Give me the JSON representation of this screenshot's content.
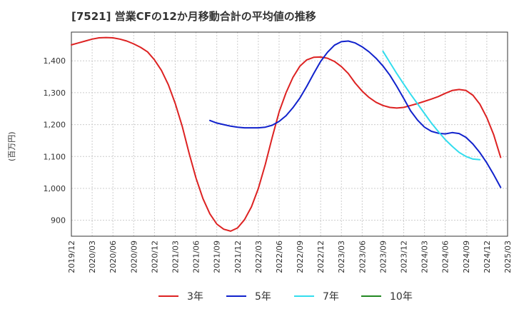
{
  "chart_data": {
    "type": "line",
    "title": "[7521]  営業CFの12か月移動合計の平均値の推移",
    "ylabel": "(百万円)",
    "xlabel": "",
    "ylim": [
      850,
      1490
    ],
    "yticks": [
      900,
      1000,
      1100,
      1200,
      1300,
      1400
    ],
    "ytick_labels": [
      "900",
      "1,000",
      "1,100",
      "1,200",
      "1,300",
      "1,400"
    ],
    "xticks": [
      "2019/12",
      "2020/03",
      "2020/06",
      "2020/09",
      "2020/12",
      "2021/03",
      "2021/06",
      "2021/09",
      "2021/12",
      "2022/03",
      "2022/06",
      "2022/09",
      "2022/12",
      "2023/03",
      "2023/06",
      "2023/09",
      "2023/12",
      "2024/03",
      "2024/06",
      "2024/09",
      "2024/12",
      "2025/03"
    ],
    "grid": true,
    "legend_position": "bottom",
    "series": [
      {
        "name": "3年",
        "color": "#dd2222",
        "start": "2019/12",
        "values": [
          1450,
          1456,
          1462,
          1468,
          1472,
          1473,
          1472,
          1468,
          1462,
          1453,
          1442,
          1428,
          1403,
          1370,
          1325,
          1266,
          1195,
          1110,
          1032,
          968,
          920,
          888,
          872,
          866,
          876,
          902,
          942,
          1000,
          1075,
          1160,
          1240,
          1300,
          1348,
          1383,
          1403,
          1411,
          1412,
          1408,
          1398,
          1382,
          1360,
          1330,
          1305,
          1285,
          1270,
          1260,
          1254,
          1252,
          1254,
          1260,
          1266,
          1273,
          1280,
          1288,
          1298,
          1307,
          1310,
          1307,
          1292,
          1264,
          1222,
          1168,
          1097
        ]
      },
      {
        "name": "5年",
        "color": "#1122cc",
        "start": "2021/08",
        "values": [
          1213,
          1205,
          1200,
          1195,
          1192,
          1190,
          1190,
          1190,
          1192,
          1198,
          1210,
          1228,
          1253,
          1283,
          1320,
          1360,
          1398,
          1427,
          1449,
          1460,
          1462,
          1456,
          1444,
          1428,
          1408,
          1384,
          1355,
          1320,
          1282,
          1243,
          1214,
          1192,
          1179,
          1173,
          1171,
          1175,
          1172,
          1160,
          1139,
          1112,
          1080,
          1043,
          1003
        ]
      },
      {
        "name": "7年",
        "color": "#33ddee",
        "start": "2023/09",
        "values": [
          1430,
          1395,
          1360,
          1327,
          1295,
          1265,
          1235,
          1205,
          1178,
          1153,
          1132,
          1113,
          1100,
          1092,
          1090
        ]
      },
      {
        "name": "10年",
        "color": "#228822",
        "start": "2024/09",
        "values": []
      }
    ]
  }
}
